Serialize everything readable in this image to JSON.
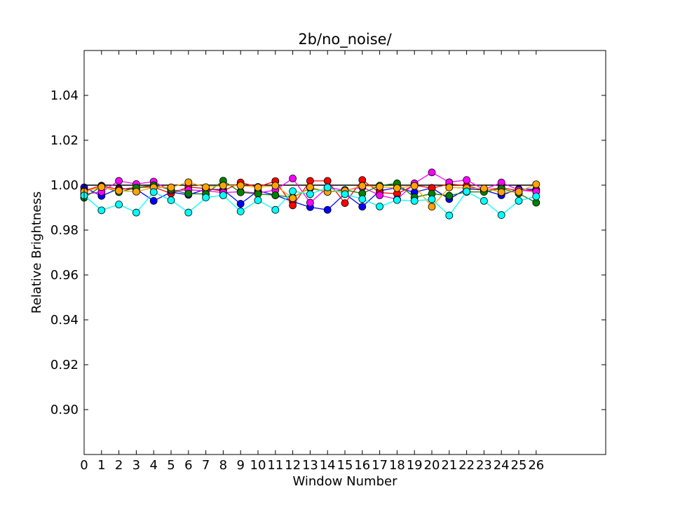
{
  "chart_data": {
    "type": "line",
    "title": "2b/no_noise/",
    "xlabel": "Window Number",
    "ylabel": "Relative Brightness",
    "xlim": [
      0,
      30
    ],
    "ylim": [
      0.88,
      1.06
    ],
    "x_ticks": [
      0,
      1,
      2,
      3,
      4,
      5,
      6,
      7,
      8,
      9,
      10,
      11,
      12,
      13,
      14,
      15,
      16,
      17,
      18,
      19,
      20,
      21,
      22,
      23,
      24,
      25,
      26
    ],
    "x_tick_labels": [
      "0",
      "1",
      "2",
      "3",
      "4",
      "5",
      "6",
      "7",
      "8",
      "9",
      "10",
      "11",
      "12",
      "13",
      "14",
      "15",
      "16",
      "17",
      "18",
      "19",
      "20",
      "21",
      "22",
      "23",
      "24",
      "25",
      "26"
    ],
    "y_ticks": [
      0.9,
      0.92,
      0.94,
      0.96,
      0.98,
      1.0,
      1.02,
      1.04
    ],
    "y_tick_labels": [
      "0.90",
      "0.92",
      "0.94",
      "0.96",
      "0.98",
      "1.00",
      "1.02",
      "1.04"
    ],
    "grid": false,
    "reference_line": {
      "y": 1.0,
      "x_range": [
        0,
        26
      ],
      "color": "#000000"
    },
    "x": [
      0,
      1,
      2,
      3,
      4,
      5,
      6,
      7,
      8,
      9,
      10,
      11,
      12,
      13,
      14,
      15,
      16,
      17,
      18,
      19,
      20,
      21,
      22,
      23,
      24,
      25,
      26
    ],
    "series": [
      {
        "color": "#0000ff",
        "values": [
          0.999,
          0.9952,
          0.9985,
          0.9982,
          0.993,
          0.9969,
          0.9957,
          0.9982,
          0.998,
          0.9917,
          0.9975,
          0.9955,
          0.9927,
          0.9902,
          0.989,
          0.9962,
          0.9904,
          0.9975,
          0.9989,
          0.9968,
          0.9988,
          0.9938,
          0.9984,
          0.9978,
          0.9955,
          0.9983,
          0.9981
        ]
      },
      {
        "color": "#ff0000",
        "values": [
          0.9975,
          0.9998,
          0.998,
          0.999,
          0.9992,
          0.9963,
          0.9992,
          0.9985,
          0.9974,
          1.0012,
          0.9992,
          1.0018,
          0.991,
          1.0019,
          1.0019,
          0.992,
          1.0023,
          0.9967,
          0.9962,
          1.0,
          0.9987,
          1.0005,
          0.9998,
          0.9977,
          0.9989,
          0.9975,
          0.9978
        ]
      },
      {
        "color": "#ff00ff",
        "values": [
          0.996,
          0.997,
          1.0019,
          1.0005,
          1.0016,
          0.9975,
          0.9979,
          0.9975,
          0.9967,
          0.9971,
          0.9965,
          0.9978,
          1.003,
          0.9922,
          0.999,
          0.9977,
          0.9991,
          0.9955,
          0.9937,
          1.0008,
          1.0057,
          1.0013,
          1.0023,
          0.998,
          1.0012,
          0.9978,
          0.9971
        ]
      },
      {
        "color": "#008000",
        "values": [
          0.9944,
          0.9995,
          0.9969,
          0.9989,
          0.9999,
          0.998,
          0.9962,
          0.9961,
          1.002,
          0.9968,
          0.9961,
          0.9955,
          0.9946,
          0.9987,
          0.997,
          0.9979,
          0.9963,
          0.9998,
          1.0008,
          0.9946,
          0.9962,
          0.9953,
          0.997,
          0.997,
          0.9985,
          0.9963,
          0.9922
        ]
      },
      {
        "color": "#ffa500",
        "values": [
          0.9971,
          0.9992,
          0.9975,
          0.9971,
          0.999,
          0.999,
          1.0013,
          0.9991,
          0.9998,
          0.9998,
          0.999,
          0.9998,
          0.9942,
          0.9991,
          0.997,
          0.9975,
          0.9997,
          0.9993,
          0.9987,
          0.9997,
          0.9904,
          0.999,
          0.9987,
          0.9985,
          0.9969,
          0.997,
          1.0004
        ]
      },
      {
        "color": "#00ffff",
        "values": [
          0.9954,
          0.9888,
          0.9914,
          0.9878,
          0.9969,
          0.9933,
          0.9878,
          0.9945,
          0.9955,
          0.9883,
          0.9933,
          0.989,
          0.9973,
          0.996,
          0.999,
          0.996,
          0.9938,
          0.9905,
          0.9934,
          0.993,
          0.9937,
          0.9865,
          0.9972,
          0.993,
          0.9867,
          0.993,
          0.995
        ]
      }
    ]
  }
}
